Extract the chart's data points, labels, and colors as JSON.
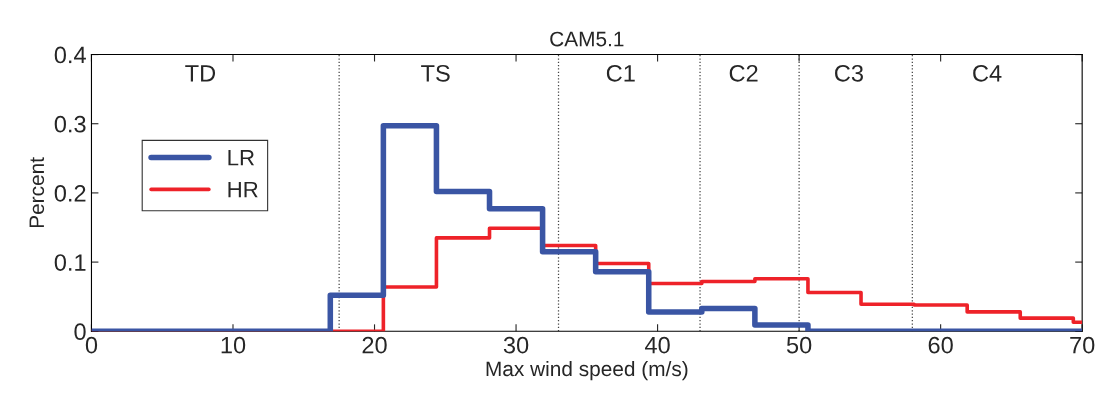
{
  "chart_data": {
    "type": "histogram",
    "title": "CAM5.1",
    "xlabel": "Max wind speed (m/s)",
    "ylabel": "Percent",
    "bins": [
      0,
      16.875,
      20.625,
      24.375,
      28.125,
      31.875,
      35.625,
      39.375,
      43.125,
      46.875,
      50.625,
      54.375,
      58.125,
      61.875,
      65.625,
      69.375,
      70
    ],
    "series": [
      {
        "name": "LR",
        "color": "#3a55a4",
        "values": [
          0,
          0.052,
          0.297,
          0.202,
          0.177,
          0.115,
          0.086,
          0.028,
          0.033,
          0.009,
          0,
          0,
          0,
          0,
          0,
          0
        ]
      },
      {
        "name": "HR",
        "color": "#ee2229",
        "values": [
          0,
          0,
          0.064,
          0.135,
          0.149,
          0.124,
          0.098,
          0.069,
          0.072,
          0.076,
          0.056,
          0.039,
          0.038,
          0.028,
          0.019,
          0.013
        ]
      }
    ],
    "xlim": [
      0,
      70
    ],
    "ylim": [
      0,
      0.4
    ],
    "xticks": [
      0,
      10,
      20,
      30,
      40,
      50,
      60,
      70
    ],
    "yticks": [
      0,
      0.1,
      0.2,
      0.3,
      0.4
    ],
    "ref_lines": [
      {
        "axis": "x",
        "value": 17.5,
        "line_style": "dotted",
        "color": "#444444"
      },
      {
        "axis": "x",
        "value": 33,
        "line_style": "dotted",
        "color": "#444444"
      },
      {
        "axis": "x",
        "value": 43,
        "line_style": "dotted",
        "color": "#444444"
      },
      {
        "axis": "x",
        "value": 50,
        "line_style": "dotted",
        "color": "#444444"
      },
      {
        "axis": "x",
        "value": 58,
        "line_style": "dotted",
        "color": "#444444"
      }
    ],
    "annotations": [
      "TD",
      "TS",
      "C1",
      "C2",
      "C3",
      "C4"
    ],
    "grid": false,
    "legend": "top left"
  }
}
